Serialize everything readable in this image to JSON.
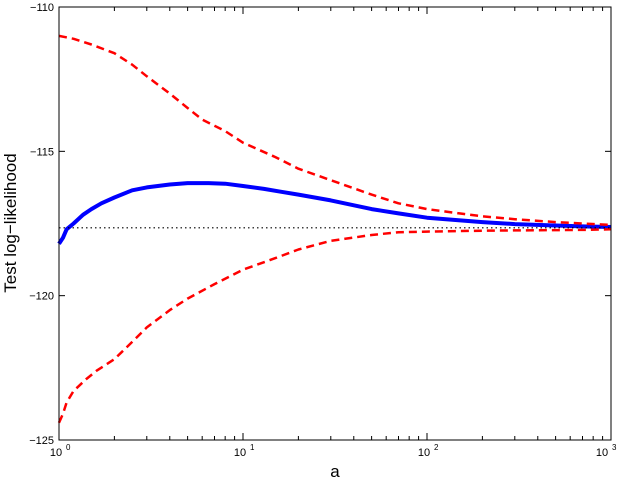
{
  "chart_data": {
    "type": "line",
    "xlabel": "a",
    "ylabel": "Test log−likelihood",
    "xscale": "log",
    "xlim": [
      1,
      1000
    ],
    "ylim": [
      -125,
      -110
    ],
    "grid": false,
    "x_ticks": [
      {
        "base": "10",
        "exp": "0",
        "value": 1
      },
      {
        "base": "10",
        "exp": "1",
        "value": 10
      },
      {
        "base": "10",
        "exp": "2",
        "value": 100
      },
      {
        "base": "10",
        "exp": "3",
        "value": 1000
      }
    ],
    "y_ticks": [
      {
        "label": "−110",
        "value": -110
      },
      {
        "label": "−115",
        "value": -115
      },
      {
        "label": "−120",
        "value": -120
      },
      {
        "label": "−125",
        "value": -125
      }
    ],
    "series": [
      {
        "style": "solid",
        "color": "#0000ff",
        "x": [
          1.0,
          1.05,
          1.1,
          1.2,
          1.35,
          1.5,
          1.7,
          2.0,
          2.5,
          3.0,
          4.0,
          5.0,
          6.5,
          8.0,
          10,
          13,
          16,
          20,
          30,
          50,
          70,
          100,
          200,
          300,
          500,
          700,
          1000
        ],
        "y": [
          -118.2,
          -118.0,
          -117.7,
          -117.5,
          -117.2,
          -117.0,
          -116.8,
          -116.6,
          -116.35,
          -116.25,
          -116.15,
          -116.1,
          -116.1,
          -116.12,
          -116.2,
          -116.3,
          -116.4,
          -116.5,
          -116.7,
          -117.0,
          -117.15,
          -117.3,
          -117.45,
          -117.52,
          -117.57,
          -117.6,
          -117.62
        ]
      },
      {
        "style": "dashed",
        "color": "#ff0000",
        "x": [
          1.0,
          1.2,
          1.5,
          2.0,
          2.5,
          3.0,
          4.0,
          5.0,
          6.0,
          8.0,
          10,
          15,
          20,
          30,
          50,
          70,
          100,
          150,
          200,
          300,
          500,
          700,
          1000
        ],
        "y": [
          -111.0,
          -111.1,
          -111.3,
          -111.6,
          -112.0,
          -112.4,
          -113.0,
          -113.5,
          -113.9,
          -114.3,
          -114.7,
          -115.2,
          -115.6,
          -116.0,
          -116.5,
          -116.8,
          -117.0,
          -117.15,
          -117.25,
          -117.35,
          -117.45,
          -117.5,
          -117.55
        ]
      },
      {
        "style": "dashed",
        "color": "#ff0000",
        "x": [
          1.0,
          1.05,
          1.1,
          1.2,
          1.4,
          1.6,
          2.0,
          2.5,
          3.0,
          4.0,
          5.0,
          7.0,
          10,
          15,
          20,
          30,
          50,
          70,
          100,
          200,
          300,
          500,
          700,
          1000
        ],
        "y": [
          -124.4,
          -124.1,
          -123.7,
          -123.3,
          -122.9,
          -122.6,
          -122.2,
          -121.6,
          -121.1,
          -120.5,
          -120.1,
          -119.6,
          -119.1,
          -118.7,
          -118.4,
          -118.1,
          -117.9,
          -117.8,
          -117.78,
          -117.75,
          -117.74,
          -117.73,
          -117.72,
          -117.7
        ]
      },
      {
        "style": "dotted",
        "color": "#000000",
        "x": [
          1,
          1000
        ],
        "y": [
          -117.65,
          -117.65
        ]
      }
    ]
  }
}
